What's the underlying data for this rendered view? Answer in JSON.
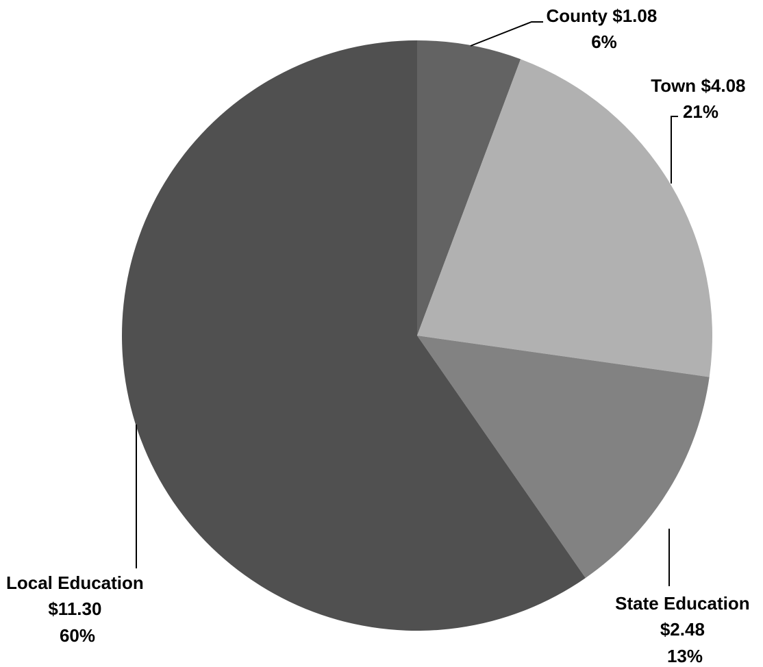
{
  "chart_data": {
    "type": "pie",
    "title": "",
    "slices": [
      {
        "name": "County",
        "amount": "$1.08",
        "value": 1.08,
        "percent": "6%",
        "color": "#636363"
      },
      {
        "name": "Town",
        "amount": "$4.08",
        "value": 4.08,
        "percent": "21%",
        "color": "#b1b1b1"
      },
      {
        "name": "State Education",
        "amount": "$2.48",
        "value": 2.48,
        "percent": "13%",
        "color": "#828282"
      },
      {
        "name": "Local Education",
        "amount": "$11.30",
        "value": 11.3,
        "percent": "60%",
        "color": "#505050"
      }
    ],
    "legend": "none",
    "start_angle": "12 o'clock",
    "direction": "clockwise"
  }
}
